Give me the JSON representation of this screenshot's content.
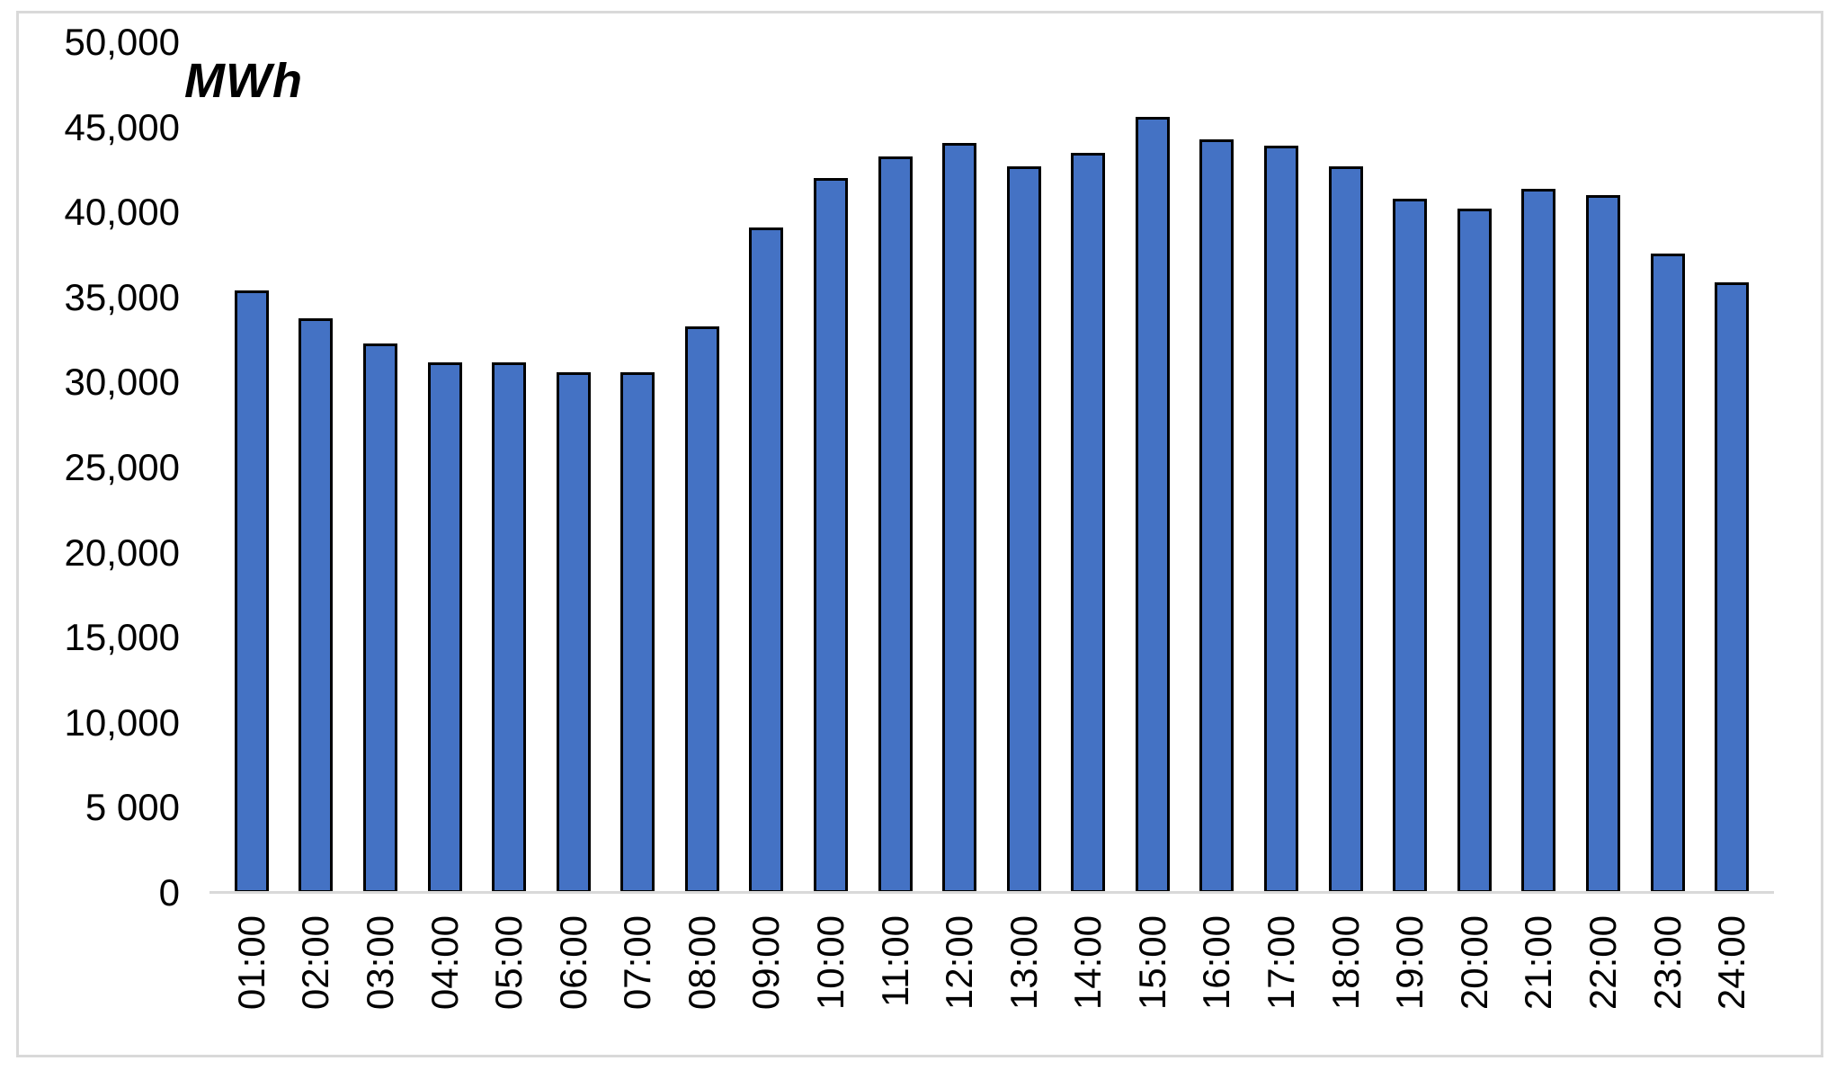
{
  "chart_data": {
    "type": "bar",
    "title": "MWh",
    "xlabel": "",
    "ylabel": "MWh",
    "ylim": [
      0,
      50000
    ],
    "grid": false,
    "legend": "none",
    "categories": [
      "01:00",
      "02:00",
      "03:00",
      "04:00",
      "05:00",
      "06:00",
      "07:00",
      "08:00",
      "09:00",
      "10:00",
      "11:00",
      "12:00",
      "13:00",
      "14:00",
      "15:00",
      "16:00",
      "17:00",
      "18:00",
      "19:00",
      "20:00",
      "21:00",
      "22:00",
      "23:00",
      "24:00"
    ],
    "values": [
      35400,
      33800,
      32300,
      31200,
      31200,
      30600,
      30600,
      33300,
      39100,
      42000,
      43300,
      44100,
      42700,
      43500,
      45600,
      44300,
      43900,
      42700,
      40800,
      40200,
      41400,
      41000,
      37600,
      35900
    ],
    "y_ticks": [
      {
        "value": 50000,
        "label": "50,000"
      },
      {
        "value": 45000,
        "label": "45,000"
      },
      {
        "value": 40000,
        "label": "40,000"
      },
      {
        "value": 35000,
        "label": "35,000"
      },
      {
        "value": 30000,
        "label": "30,000"
      },
      {
        "value": 25000,
        "label": "25,000"
      },
      {
        "value": 20000,
        "label": "20,000"
      },
      {
        "value": 15000,
        "label": "15,000"
      },
      {
        "value": 10000,
        "label": "10,000"
      },
      {
        "value": 5000,
        "label": "5 000"
      },
      {
        "value": 0,
        "label": "0"
      }
    ],
    "colors": {
      "bar_fill": "#4472C4",
      "bar_border": "#000000",
      "axis_line": "#D9D9D9",
      "frame_border": "#D9D9D9",
      "text": "#000000"
    }
  }
}
